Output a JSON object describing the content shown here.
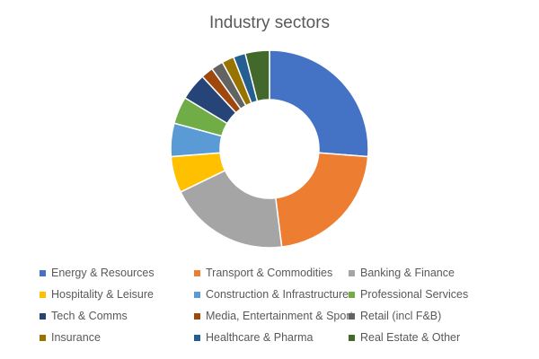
{
  "chart_data": {
    "type": "pie",
    "variant": "donut",
    "title": "Industry sectors",
    "legend_position": "bottom",
    "series": [
      {
        "name": "Energy & Resources",
        "value": 26.5,
        "color": "#4472C4"
      },
      {
        "name": "Transport & Commodities",
        "value": 22.0,
        "color": "#ED7D31"
      },
      {
        "name": "Banking & Finance",
        "value": 20.0,
        "color": "#A5A5A5"
      },
      {
        "name": "Hospitality & Leisure",
        "value": 6.0,
        "color": "#FFC000"
      },
      {
        "name": "Construction & Infrastructure",
        "value": 5.5,
        "color": "#5B9BD5"
      },
      {
        "name": "Professional Services",
        "value": 4.5,
        "color": "#70AD47"
      },
      {
        "name": "Tech & Comms",
        "value": 4.5,
        "color": "#264478"
      },
      {
        "name": "Media, Entertainment & Sport",
        "value": 2.0,
        "color": "#9E480E"
      },
      {
        "name": "Retail (incl F&B)",
        "value": 2.0,
        "color": "#636363"
      },
      {
        "name": "Insurance",
        "value": 2.0,
        "color": "#997300"
      },
      {
        "name": "Healthcare & Pharma",
        "value": 2.0,
        "color": "#255E91"
      },
      {
        "name": "Real Estate & Other",
        "value": 4.0,
        "color": "#43682B"
      }
    ]
  }
}
